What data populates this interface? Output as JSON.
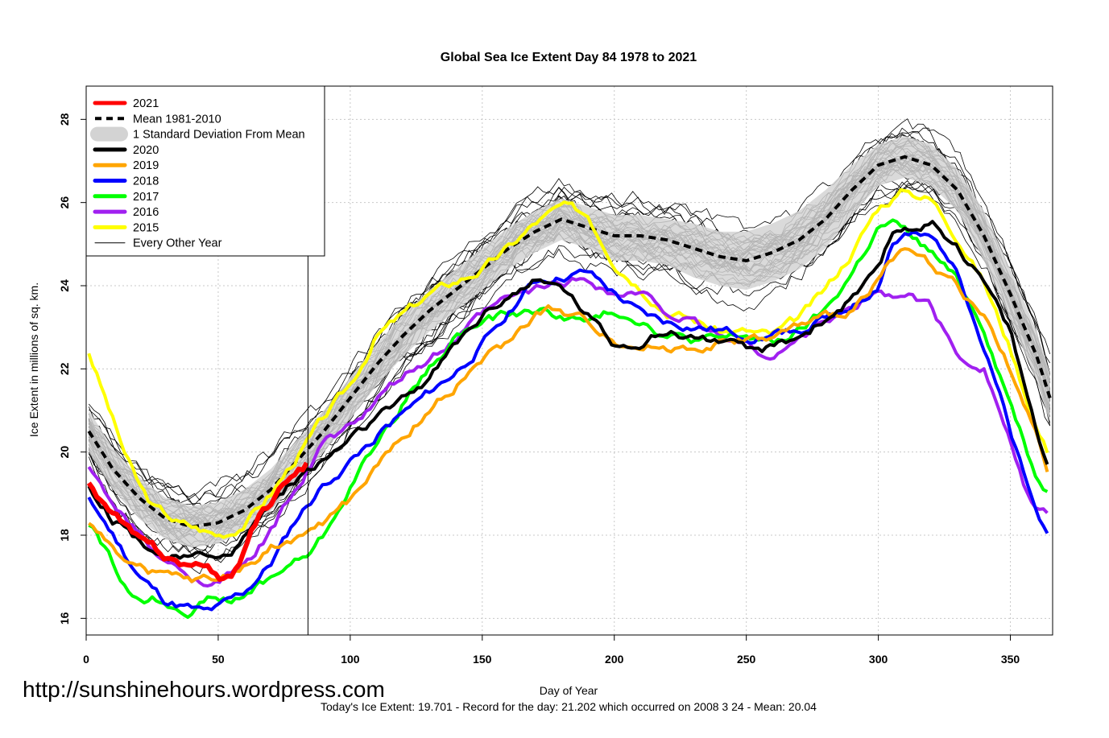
{
  "chart_data": {
    "type": "line",
    "title": "Global Sea Ice Extent Day 84 1978 to 2021",
    "xlabel": "Day of Year",
    "ylabel": "Ice Extent in millions of sq. km.",
    "xlim": [
      0,
      366
    ],
    "ylim": [
      15.6,
      28.8
    ],
    "xticks": [
      0,
      50,
      100,
      150,
      200,
      250,
      300,
      350
    ],
    "yticks": [
      16,
      18,
      20,
      22,
      24,
      26,
      28
    ],
    "grid": true,
    "legend_position": "top-left",
    "marker_day": 84,
    "legend": [
      {
        "label": "2021",
        "color": "#ff0000",
        "style": "thick"
      },
      {
        "label": "Mean 1981-2010",
        "color": "#000000",
        "style": "dashed"
      },
      {
        "label": "1 Standard Deviation From Mean",
        "color": "#d3d3d3",
        "style": "band"
      },
      {
        "label": "2020",
        "color": "#000000",
        "style": "thick"
      },
      {
        "label": "2019",
        "color": "#ffa500",
        "style": "thick"
      },
      {
        "label": "2018",
        "color": "#0000ff",
        "style": "thick"
      },
      {
        "label": "2017",
        "color": "#00ff00",
        "style": "thick"
      },
      {
        "label": "2016",
        "color": "#a020f0",
        "style": "thick"
      },
      {
        "label": "2015",
        "color": "#ffff00",
        "style": "thick"
      },
      {
        "label": "Every Other Year",
        "color": "#000000",
        "style": "thin"
      }
    ],
    "mean": {
      "x": [
        1,
        10,
        20,
        30,
        40,
        50,
        60,
        70,
        80,
        90,
        100,
        110,
        120,
        130,
        140,
        150,
        160,
        170,
        180,
        190,
        200,
        210,
        220,
        230,
        240,
        250,
        260,
        270,
        280,
        290,
        300,
        310,
        320,
        330,
        340,
        350,
        360,
        365
      ],
      "y": [
        20.5,
        19.6,
        18.9,
        18.4,
        18.2,
        18.3,
        18.6,
        19.1,
        19.8,
        20.5,
        21.3,
        22.1,
        22.8,
        23.4,
        23.9,
        24.4,
        24.9,
        25.3,
        25.6,
        25.4,
        25.2,
        25.2,
        25.1,
        24.9,
        24.7,
        24.6,
        24.8,
        25.1,
        25.6,
        26.3,
        26.9,
        27.1,
        26.9,
        26.3,
        25.2,
        23.8,
        22.3,
        21.3
      ]
    },
    "std_band": {
      "x": [
        1,
        10,
        20,
        30,
        40,
        50,
        60,
        70,
        80,
        90,
        100,
        110,
        120,
        130,
        140,
        150,
        160,
        170,
        180,
        190,
        200,
        210,
        220,
        230,
        240,
        250,
        260,
        270,
        280,
        290,
        300,
        310,
        320,
        330,
        340,
        350,
        360,
        365
      ],
      "upper": [
        21.0,
        20.1,
        19.4,
        18.9,
        18.7,
        18.8,
        19.1,
        19.6,
        20.3,
        21.0,
        21.8,
        22.6,
        23.3,
        23.9,
        24.4,
        24.9,
        25.4,
        25.8,
        26.1,
        25.9,
        25.7,
        25.7,
        25.6,
        25.5,
        25.3,
        25.3,
        25.5,
        25.8,
        26.3,
        26.9,
        27.4,
        27.6,
        27.4,
        26.8,
        25.8,
        24.4,
        22.9,
        21.9
      ],
      "lower": [
        20.0,
        19.1,
        18.4,
        17.9,
        17.7,
        17.8,
        18.1,
        18.6,
        19.3,
        20.0,
        20.8,
        21.6,
        22.3,
        22.9,
        23.4,
        23.9,
        24.4,
        24.8,
        25.1,
        24.9,
        24.6,
        24.6,
        24.5,
        24.2,
        24.0,
        23.9,
        24.1,
        24.4,
        24.9,
        25.7,
        26.4,
        26.6,
        26.4,
        25.8,
        24.6,
        23.2,
        21.7,
        20.7
      ]
    },
    "series": [
      {
        "name": "2021",
        "color": "#ff0000",
        "x": [
          1,
          5,
          10,
          15,
          20,
          25,
          30,
          35,
          40,
          45,
          50,
          55,
          58,
          62,
          66,
          70,
          74,
          78,
          82,
          84
        ],
        "y": [
          19.2,
          18.9,
          18.5,
          18.2,
          17.9,
          17.7,
          17.5,
          17.4,
          17.3,
          17.2,
          17.0,
          16.9,
          17.3,
          18.1,
          18.5,
          18.8,
          19.1,
          19.4,
          19.6,
          19.7
        ]
      },
      {
        "name": "2020",
        "color": "#000000",
        "x": [
          1,
          10,
          20,
          30,
          40,
          50,
          55,
          60,
          70,
          80,
          90,
          100,
          110,
          120,
          130,
          140,
          150,
          160,
          170,
          175,
          180,
          190,
          200,
          210,
          220,
          230,
          240,
          250,
          260,
          270,
          280,
          290,
          300,
          305,
          310,
          320,
          330,
          340,
          350,
          360,
          365
        ],
        "y": [
          19.2,
          18.4,
          17.9,
          17.5,
          17.4,
          17.6,
          17.5,
          18.0,
          18.8,
          19.4,
          19.8,
          20.3,
          20.8,
          21.2,
          21.8,
          22.6,
          23.3,
          23.8,
          24.1,
          24.0,
          24.0,
          23.3,
          22.6,
          22.7,
          22.9,
          22.8,
          22.7,
          22.4,
          22.5,
          22.8,
          23.2,
          23.7,
          24.3,
          25.2,
          25.4,
          25.5,
          25.0,
          24.1,
          22.9,
          20.5,
          19.5
        ]
      },
      {
        "name": "2019",
        "color": "#ffa500",
        "x": [
          1,
          10,
          20,
          30,
          40,
          50,
          60,
          70,
          80,
          90,
          100,
          110,
          120,
          130,
          140,
          150,
          160,
          170,
          175,
          180,
          190,
          200,
          210,
          220,
          230,
          240,
          250,
          260,
          270,
          280,
          290,
          300,
          305,
          310,
          320,
          330,
          340,
          350,
          360,
          365
        ],
        "y": [
          18.2,
          17.7,
          17.2,
          17.0,
          16.9,
          16.9,
          17.2,
          17.7,
          18.0,
          18.3,
          18.8,
          19.6,
          20.4,
          21.0,
          21.6,
          22.2,
          22.6,
          23.3,
          23.4,
          23.3,
          23.1,
          22.7,
          22.5,
          22.5,
          22.5,
          22.6,
          22.7,
          22.7,
          23.0,
          23.2,
          23.4,
          24.2,
          24.7,
          24.8,
          24.5,
          24.0,
          23.2,
          22.0,
          20.3,
          19.3
        ]
      },
      {
        "name": "2018",
        "color": "#0000ff",
        "x": [
          1,
          10,
          20,
          30,
          40,
          45,
          50,
          60,
          70,
          80,
          90,
          100,
          110,
          120,
          130,
          140,
          150,
          160,
          170,
          180,
          190,
          200,
          210,
          220,
          230,
          240,
          250,
          260,
          270,
          280,
          290,
          300,
          305,
          310,
          320,
          330,
          340,
          350,
          360,
          365
        ],
        "y": [
          18.9,
          18.0,
          17.0,
          16.4,
          16.2,
          16.1,
          16.2,
          16.6,
          17.3,
          18.4,
          19.2,
          19.8,
          20.4,
          20.9,
          21.4,
          21.9,
          22.6,
          23.4,
          24.1,
          24.2,
          24.3,
          23.8,
          23.3,
          23.1,
          23.0,
          22.9,
          22.8,
          22.8,
          23.0,
          23.2,
          23.5,
          24.0,
          25.0,
          25.2,
          25.1,
          24.5,
          22.5,
          20.5,
          18.5,
          18.1
        ]
      },
      {
        "name": "2017",
        "color": "#00ff00",
        "x": [
          1,
          5,
          10,
          15,
          20,
          25,
          30,
          35,
          40,
          45,
          50,
          55,
          60,
          65,
          70,
          75,
          80,
          85,
          90,
          95,
          100,
          110,
          120,
          130,
          140,
          150,
          160,
          170,
          180,
          190,
          200,
          210,
          220,
          230,
          240,
          250,
          260,
          270,
          280,
          290,
          300,
          305,
          310,
          320,
          330,
          340,
          350,
          360,
          365
        ],
        "y": [
          18.3,
          17.9,
          17.3,
          16.7,
          16.5,
          16.5,
          16.4,
          16.3,
          16.2,
          16.4,
          16.5,
          16.4,
          16.5,
          16.8,
          17.0,
          17.2,
          17.4,
          17.6,
          18.0,
          18.6,
          19.2,
          20.2,
          21.2,
          22.0,
          22.8,
          23.1,
          23.3,
          23.4,
          23.3,
          23.1,
          23.4,
          23.2,
          22.8,
          22.7,
          22.7,
          22.8,
          22.6,
          22.9,
          23.4,
          24.3,
          25.4,
          25.5,
          25.3,
          24.8,
          24.1,
          23.0,
          21.2,
          19.4,
          19.0
        ]
      },
      {
        "name": "2016",
        "color": "#a020f0",
        "x": [
          1,
          10,
          20,
          30,
          40,
          50,
          60,
          70,
          80,
          90,
          100,
          110,
          120,
          130,
          140,
          150,
          160,
          170,
          180,
          190,
          200,
          210,
          220,
          230,
          240,
          250,
          260,
          270,
          280,
          290,
          300,
          305,
          310,
          320,
          330,
          340,
          350,
          355,
          360,
          365
        ],
        "y": [
          19.6,
          18.7,
          18.0,
          17.3,
          17.0,
          16.9,
          17.2,
          18.1,
          19.2,
          20.2,
          20.6,
          21.2,
          21.8,
          22.2,
          22.7,
          23.3,
          23.7,
          23.9,
          24.1,
          24.2,
          23.8,
          23.8,
          23.4,
          23.1,
          22.8,
          22.6,
          22.3,
          22.7,
          23.2,
          23.4,
          23.9,
          23.7,
          23.9,
          23.5,
          22.3,
          22.1,
          20.3,
          19.2,
          18.5,
          18.4
        ]
      },
      {
        "name": "2015",
        "color": "#ffff00",
        "x": [
          1,
          5,
          10,
          15,
          20,
          25,
          30,
          35,
          40,
          45,
          50,
          55,
          60,
          70,
          80,
          90,
          100,
          110,
          120,
          130,
          140,
          150,
          160,
          170,
          180,
          190,
          200,
          210,
          220,
          230,
          240,
          250,
          260,
          270,
          280,
          290,
          300,
          305,
          310,
          320,
          330,
          340,
          350,
          360,
          365
        ],
        "y": [
          22.4,
          21.7,
          20.8,
          19.9,
          19.2,
          18.7,
          18.5,
          18.3,
          18.2,
          18.1,
          18.0,
          18.1,
          18.3,
          19.0,
          19.9,
          20.8,
          21.6,
          22.8,
          23.3,
          23.8,
          24.1,
          24.4,
          24.9,
          25.5,
          25.9,
          25.7,
          24.6,
          24.0,
          23.4,
          23.2,
          22.9,
          22.9,
          22.8,
          23.2,
          23.9,
          24.8,
          25.9,
          26.1,
          26.3,
          26.1,
          25.2,
          24.1,
          22.5,
          20.6,
          19.9
        ]
      }
    ]
  },
  "footer": {
    "url": "http://sunshinehours.wordpress.com",
    "stats": "Today's Ice Extent: 19.701  - Record for the day: 21.202 which occurred on 2008 3 24  - Mean: 20.04"
  }
}
